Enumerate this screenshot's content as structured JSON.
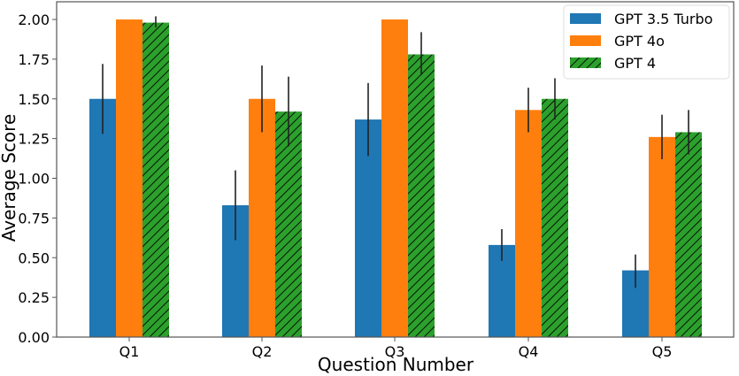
{
  "chart_data": {
    "type": "bar",
    "title": "",
    "xlabel": "Question Number",
    "ylabel": "Average Score",
    "ylim": [
      0,
      2.1
    ],
    "yticks": [
      "0.00",
      "0.25",
      "0.50",
      "0.75",
      "1.00",
      "1.25",
      "1.50",
      "1.75",
      "2.00"
    ],
    "categories": [
      "Q1",
      "Q2",
      "Q3",
      "Q4",
      "Q5"
    ],
    "grid": false,
    "legend_position": "upper right",
    "series": [
      {
        "name": "GPT 3.5 Turbo",
        "color": "#1f77b4",
        "hatch": false,
        "values": [
          1.5,
          0.83,
          1.37,
          0.58,
          0.42
        ],
        "error_low": [
          1.28,
          0.61,
          1.14,
          0.48,
          0.31
        ],
        "error_high": [
          1.72,
          1.05,
          1.6,
          0.68,
          0.52
        ]
      },
      {
        "name": "GPT 4o",
        "color": "#ff7f0e",
        "hatch": false,
        "values": [
          2.0,
          1.5,
          2.0,
          1.43,
          1.26
        ],
        "error_low": [
          2.0,
          1.29,
          2.0,
          1.29,
          1.12
        ],
        "error_high": [
          2.0,
          1.71,
          2.0,
          1.57,
          1.4
        ]
      },
      {
        "name": "GPT 4",
        "color": "#2ca02c",
        "hatch": true,
        "values": [
          1.98,
          1.42,
          1.78,
          1.5,
          1.29
        ],
        "error_low": [
          1.95,
          1.2,
          1.65,
          1.37,
          1.15
        ],
        "error_high": [
          2.02,
          1.64,
          1.92,
          1.63,
          1.43
        ]
      }
    ]
  }
}
